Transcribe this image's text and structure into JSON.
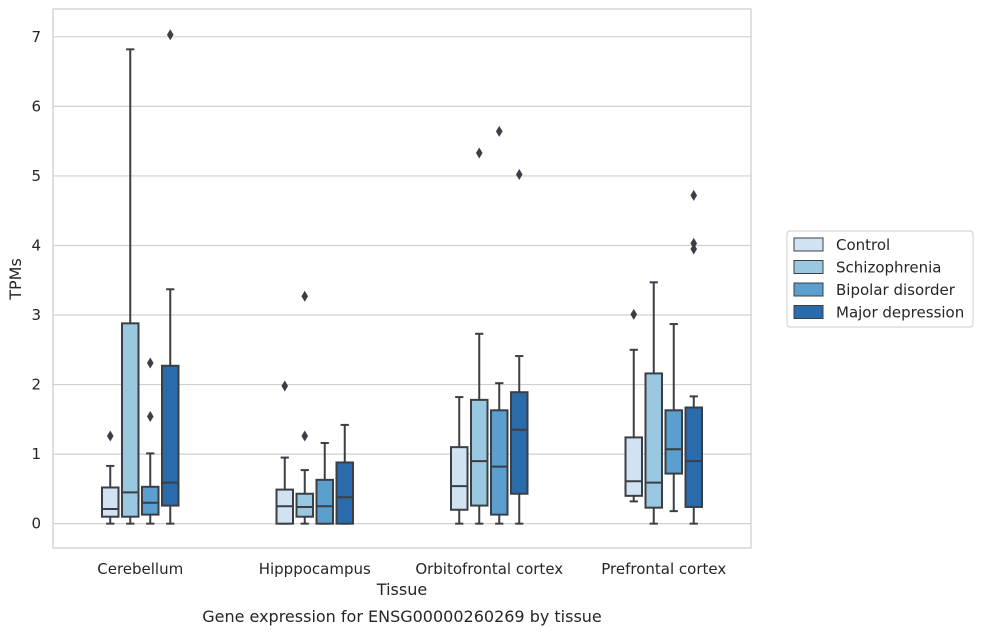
{
  "chart_data": {
    "type": "boxplot",
    "title": "Gene expression for ENSG00000260269 by tissue",
    "xlabel": "Tissue",
    "ylabel": "TPMs",
    "ylim": [
      -0.35,
      7.4
    ],
    "yticks": [
      0,
      1,
      2,
      3,
      4,
      5,
      6,
      7
    ],
    "grid": "horizontal",
    "legend_position": "right",
    "categories": [
      "Cerebellum",
      "Hipppocampus",
      "Orbitofrontal cortex",
      "Prefrontal cortex"
    ],
    "series": [
      {
        "name": "Control",
        "color": "#d1e3f3",
        "boxes": [
          {
            "whisker_low": 0,
            "q1": 0.1,
            "median": 0.21,
            "q3": 0.52,
            "whisker_high": 0.83,
            "outliers": [
              1.26
            ]
          },
          {
            "whisker_low": 0,
            "q1": 0,
            "median": 0.25,
            "q3": 0.49,
            "whisker_high": 0.95,
            "outliers": [
              1.98
            ]
          },
          {
            "whisker_low": 0,
            "q1": 0.2,
            "median": 0.54,
            "q3": 1.1,
            "whisker_high": 1.82,
            "outliers": []
          },
          {
            "whisker_low": 0.32,
            "q1": 0.4,
            "median": 0.61,
            "q3": 1.24,
            "whisker_high": 2.5,
            "outliers": [
              3.01
            ]
          }
        ]
      },
      {
        "name": "Schizophrenia",
        "color": "#9ac8e0",
        "boxes": [
          {
            "whisker_low": 0,
            "q1": 0.1,
            "median": 0.45,
            "q3": 2.88,
            "whisker_high": 6.82,
            "outliers": []
          },
          {
            "whisker_low": 0,
            "q1": 0.1,
            "median": 0.24,
            "q3": 0.43,
            "whisker_high": 0.77,
            "outliers": [
              1.26,
              3.27
            ]
          },
          {
            "whisker_low": 0,
            "q1": 0.26,
            "median": 0.9,
            "q3": 1.78,
            "whisker_high": 2.73,
            "outliers": [
              5.33
            ]
          },
          {
            "whisker_low": 0,
            "q1": 0.23,
            "median": 0.59,
            "q3": 2.16,
            "whisker_high": 3.47,
            "outliers": []
          }
        ]
      },
      {
        "name": "Bipolar disorder",
        "color": "#5a9fcd",
        "boxes": [
          {
            "whisker_low": 0,
            "q1": 0.13,
            "median": 0.3,
            "q3": 0.53,
            "whisker_high": 1.01,
            "outliers": [
              1.54,
              2.31
            ]
          },
          {
            "whisker_low": 0,
            "q1": 0,
            "median": 0.25,
            "q3": 0.63,
            "whisker_high": 1.16,
            "outliers": []
          },
          {
            "whisker_low": 0,
            "q1": 0.13,
            "median": 0.82,
            "q3": 1.63,
            "whisker_high": 2.02,
            "outliers": [
              5.64
            ]
          },
          {
            "whisker_low": 0.18,
            "q1": 0.72,
            "median": 1.07,
            "q3": 1.63,
            "whisker_high": 2.87,
            "outliers": []
          }
        ]
      },
      {
        "name": "Major depression",
        "color": "#2a6bab",
        "boxes": [
          {
            "whisker_low": 0,
            "q1": 0.26,
            "median": 0.59,
            "q3": 2.27,
            "whisker_high": 3.37,
            "outliers": [
              7.03
            ]
          },
          {
            "whisker_low": 0,
            "q1": 0,
            "median": 0.38,
            "q3": 0.88,
            "whisker_high": 1.42,
            "outliers": []
          },
          {
            "whisker_low": 0,
            "q1": 0.43,
            "median": 1.35,
            "q3": 1.89,
            "whisker_high": 2.41,
            "outliers": [
              5.02
            ]
          },
          {
            "whisker_low": 0,
            "q1": 0.24,
            "median": 0.9,
            "q3": 1.67,
            "whisker_high": 1.83,
            "outliers": [
              3.95,
              4.03,
              4.72
            ]
          }
        ]
      }
    ]
  }
}
